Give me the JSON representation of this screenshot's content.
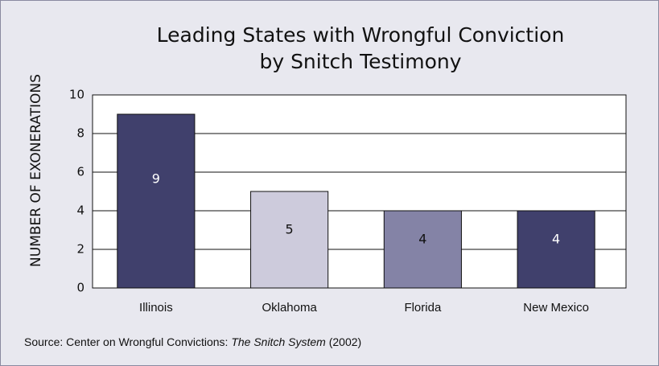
{
  "chart_data": {
    "type": "bar",
    "title": [
      "Leading States with Wrongful Conviction",
      "by Snitch Testimony"
    ],
    "y_label": "NUMBER OF EXONERATIONS",
    "source": [
      "Source: Center on Wrongful Convictions:",
      "The Snitch System",
      "(2002)"
    ],
    "categories": [
      "Illinois",
      "Oklahoma",
      "Florida",
      "New Mexico"
    ],
    "values": [
      9,
      5,
      4,
      4
    ],
    "colors": [
      "#40406c",
      "#cdcbdc",
      "#8483a6",
      "#40406c"
    ],
    "label_colors": [
      "#ffffff",
      "#111111",
      "#111111",
      "#ffffff"
    ],
    "ylim": [
      0,
      10
    ],
    "yticks": [
      0,
      2,
      4,
      6,
      8,
      10
    ],
    "grid": true
  }
}
